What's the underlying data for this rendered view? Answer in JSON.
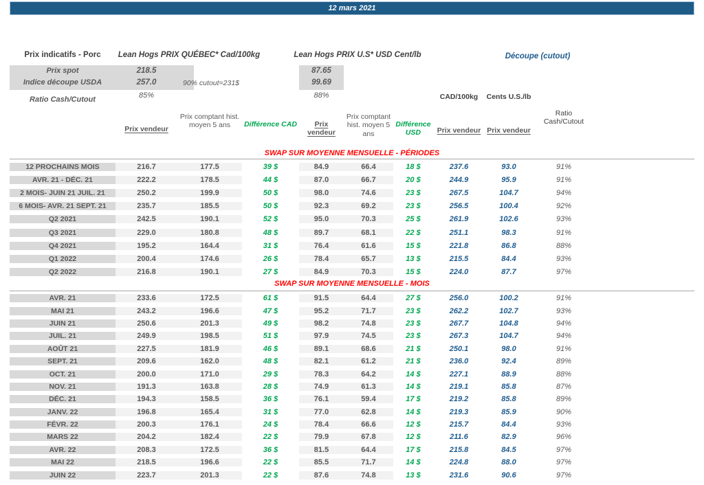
{
  "titlebar": {
    "date": "12 mars 2021"
  },
  "info": {
    "title": "Prix indicatifs - Porc",
    "quebec_header": "Lean Hogs PRIX QUÉBEC* Cad/100kg",
    "us_header": "Lean Hogs PRIX U.S* USD Cent/lb",
    "cutout_header": "Découpe (cutout)",
    "spot_label": "Prix spot",
    "spot_cad": "218.5",
    "spot_usd": "87.65",
    "usda_label": "Indice découpe USDA",
    "usda_cad": "257.0",
    "usda_usd": "99.69",
    "cutout_note": "90% cutout=231$",
    "ratio_label": "Ratio Cash/Cutout",
    "ratio_cad": "85%",
    "ratio_usd": "88%",
    "unit_cad": "CAD/100kg",
    "unit_us": "Cents U.S./lb"
  },
  "columns": {
    "prix_vendeur_cad": "Prix vendeur",
    "prix_comptant_cad": "Prix comptant hist. moyen 5 ans",
    "diff_cad": "Différence CAD",
    "prix_vendeur_usd": "Prix vendeur",
    "prix_comptant_usd": "Prix comptant hist. moyen 5 ans",
    "diff_usd": "Différence USD",
    "prix_vendeur_cutout_cad": "Prix vendeur",
    "prix_vendeur_cutout_cents": "Prix vendeur",
    "ratio": "Ratio Cash/Cutout"
  },
  "colors": {
    "bar_blue": "#1F5B87",
    "text_blue": "#1F5C8F",
    "diff_green": "#00A651",
    "section_red": "#FF0000",
    "label_gray": "#D9D9D9",
    "panel_gray": "#F2F2F2",
    "text_gray": "#595959"
  },
  "sections": [
    {
      "title": "SWAP SUR MOYENNE MENSUELLE - PÉRIODES",
      "rows": [
        [
          "12 PROCHAINS MOIS",
          "216.7",
          "177.5",
          "39 $",
          "84.9",
          "66.4",
          "18 $",
          "237.6",
          "93.0",
          "91%"
        ],
        [
          "AVR. 21 -  DÉC. 21",
          "222.2",
          "178.5",
          "44 $",
          "87.0",
          "66.7",
          "20 $",
          "244.9",
          "95.9",
          "91%"
        ],
        [
          "2 MOIS- JUIN 21 JUIL. 21",
          "250.2",
          "199.9",
          "50 $",
          "98.0",
          "74.6",
          "23 $",
          "267.5",
          "104.7",
          "94%"
        ],
        [
          "6 MOIS- AVR. 21 SEPT. 21",
          "235.7",
          "185.5",
          "50 $",
          "92.3",
          "69.2",
          "23 $",
          "256.5",
          "100.4",
          "92%"
        ],
        [
          "Q2 2021",
          "242.5",
          "190.1",
          "52 $",
          "95.0",
          "70.3",
          "25 $",
          "261.9",
          "102.6",
          "93%"
        ],
        [
          "Q3 2021",
          "229.0",
          "180.8",
          "48 $",
          "89.7",
          "68.1",
          "22 $",
          "251.1",
          "98.3",
          "91%"
        ],
        [
          "Q4 2021",
          "195.2",
          "164.4",
          "31 $",
          "76.4",
          "61.6",
          "15 $",
          "221.8",
          "86.8",
          "88%"
        ],
        [
          "Q1 2022",
          "200.4",
          "174.6",
          "26 $",
          "78.4",
          "65.7",
          "13 $",
          "215.5",
          "84.4",
          "93%"
        ],
        [
          "Q2 2022",
          "216.8",
          "190.1",
          "27 $",
          "84.9",
          "70.3",
          "15 $",
          "224.0",
          "87.7",
          "97%"
        ]
      ]
    },
    {
      "title": "SWAP SUR MOYENNE MENSUELLE - MOIS",
      "rows": [
        [
          "AVR. 21",
          "233.6",
          "172.5",
          "61 $",
          "91.5",
          "64.4",
          "27 $",
          "256.0",
          "100.2",
          "91%"
        ],
        [
          "MAI 21",
          "243.2",
          "196.6",
          "47 $",
          "95.2",
          "71.7",
          "23 $",
          "262.2",
          "102.7",
          "93%"
        ],
        [
          "JUIN 21",
          "250.6",
          "201.3",
          "49 $",
          "98.2",
          "74.8",
          "23 $",
          "267.7",
          "104.8",
          "94%"
        ],
        [
          "JUIL. 21",
          "249.9",
          "198.5",
          "51 $",
          "97.9",
          "74.5",
          "23 $",
          "267.3",
          "104.7",
          "94%"
        ],
        [
          "AOÛT 21",
          "227.5",
          "181.9",
          "46 $",
          "89.1",
          "68.6",
          "21 $",
          "250.1",
          "98.0",
          "91%"
        ],
        [
          "SEPT. 21",
          "209.6",
          "162.0",
          "48 $",
          "82.1",
          "61.2",
          "21 $",
          "236.0",
          "92.4",
          "89%"
        ],
        [
          "OCT. 21",
          "200.0",
          "171.0",
          "29 $",
          "78.3",
          "64.2",
          "14 $",
          "227.1",
          "88.9",
          "88%"
        ],
        [
          "NOV. 21",
          "191.3",
          "163.8",
          "28 $",
          "74.9",
          "61.3",
          "14 $",
          "219.1",
          "85.8",
          "87%"
        ],
        [
          "DÉC. 21",
          "194.3",
          "158.5",
          "36 $",
          "76.1",
          "59.4",
          "17 $",
          "219.2",
          "85.8",
          "89%"
        ],
        [
          "JANV. 22",
          "196.8",
          "165.4",
          "31 $",
          "77.0",
          "62.8",
          "14 $",
          "219.3",
          "85.9",
          "90%"
        ],
        [
          "FÉVR. 22",
          "200.3",
          "176.1",
          "24 $",
          "78.4",
          "66.6",
          "12 $",
          "215.7",
          "84.4",
          "93%"
        ],
        [
          "MARS 22",
          "204.2",
          "182.4",
          "22 $",
          "79.9",
          "67.8",
          "12 $",
          "211.6",
          "82.9",
          "96%"
        ],
        [
          "AVR. 22",
          "208.3",
          "172.5",
          "36 $",
          "81.5",
          "64.4",
          "17 $",
          "215.8",
          "84.5",
          "97%"
        ],
        [
          "MAI 22",
          "218.5",
          "196.6",
          "22 $",
          "85.5",
          "71.7",
          "14 $",
          "224.8",
          "88.0",
          "97%"
        ],
        [
          "JUIN 22",
          "223.7",
          "201.3",
          "22 $",
          "87.6",
          "74.8",
          "13 $",
          "231.6",
          "90.6",
          "97%"
        ]
      ]
    }
  ]
}
